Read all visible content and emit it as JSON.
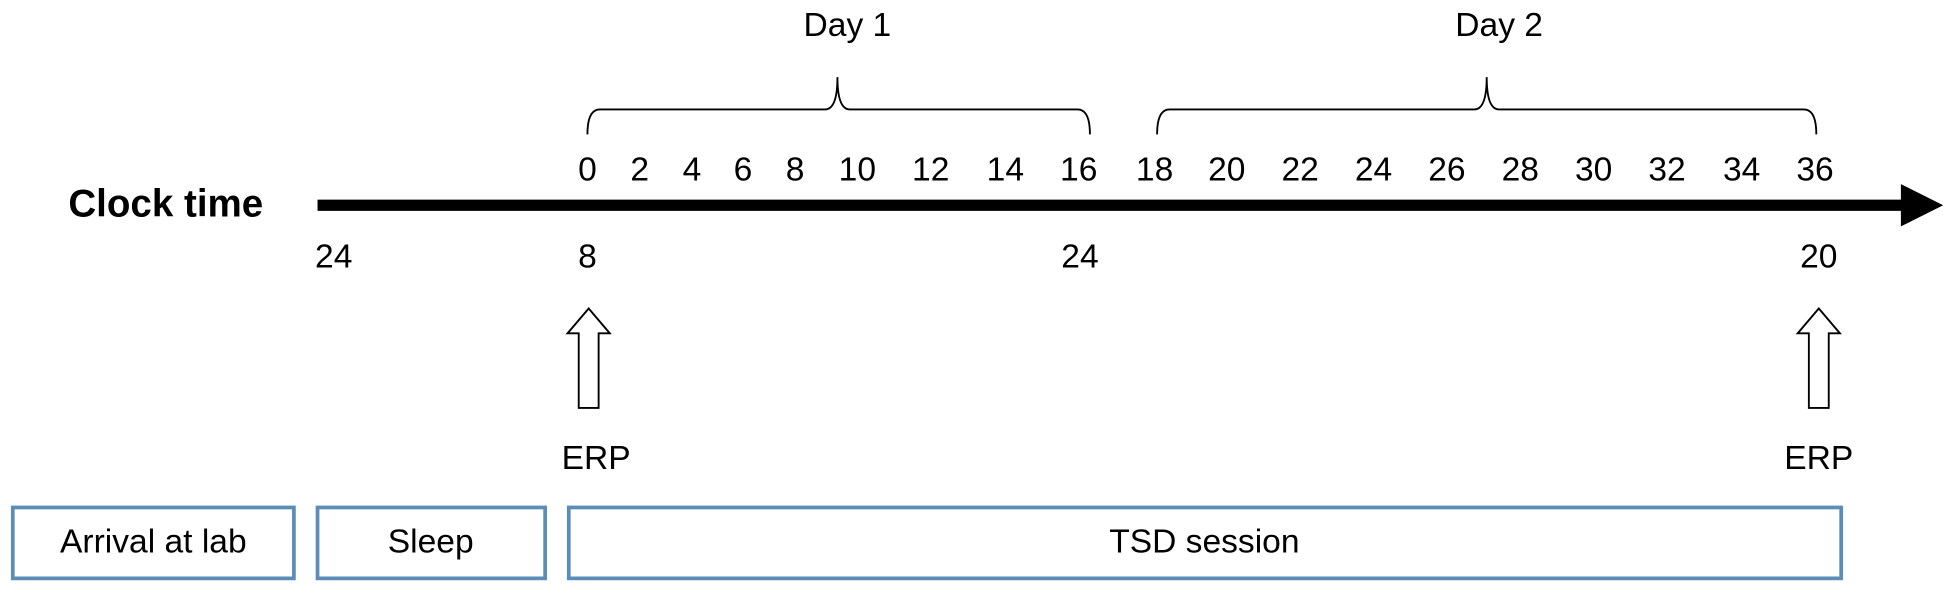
{
  "header": {
    "day1": "Day 1",
    "day2": "Day 2",
    "axis_label": "Clock time"
  },
  "hours": [
    "0",
    "2",
    "4",
    "6",
    "8",
    "10",
    "12",
    "14",
    "16",
    "18",
    "20",
    "22",
    "24",
    "26",
    "28",
    "30",
    "32",
    "34",
    "36"
  ],
  "clock": [
    "24",
    "8",
    "24",
    "20"
  ],
  "markers": [
    "ERP",
    "ERP"
  ],
  "phases": [
    "Arrival at lab",
    "Sleep",
    "TSD session"
  ]
}
